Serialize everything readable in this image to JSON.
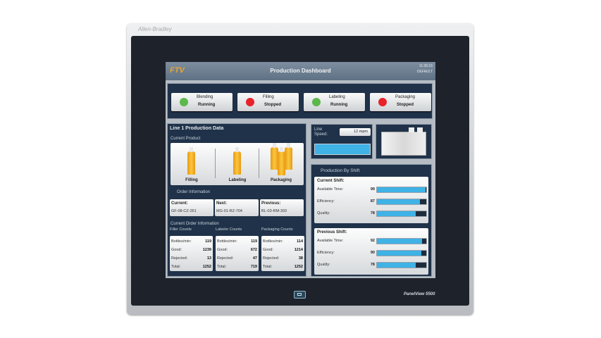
{
  "device": {
    "brand": "Allen-Bradley",
    "model": "PanelView 5500"
  },
  "header": {
    "title": "Production Dashboard",
    "time": "11:36:15",
    "user": "DEFAULT",
    "logo": "FTV"
  },
  "status": [
    {
      "name": "Blending",
      "state": "Running",
      "color": "#5cb84a"
    },
    {
      "name": "Filling",
      "state": "Stopped",
      "color": "#e8222a"
    },
    {
      "name": "Labeling",
      "state": "Running",
      "color": "#5cb84a"
    },
    {
      "name": "Packaging",
      "state": "Stopped",
      "color": "#e8222a"
    }
  ],
  "line": {
    "title": "Line 1 Production Data",
    "current_product": "Current Product",
    "stages": [
      "Filling",
      "Labeling",
      "Packaging"
    ],
    "order_title": "Order Information",
    "orders": [
      {
        "label": "Current:",
        "value": "GF-08-CZ-261"
      },
      {
        "label": "Next:",
        "value": "MG-01-RZ-704"
      },
      {
        "label": "Previous:",
        "value": "BL-03-RM-393"
      }
    ],
    "counts_title": "Current Order Information",
    "counts": [
      {
        "title": "Filler Counts",
        "rows": [
          [
            "Bottles/min:",
            "119"
          ],
          [
            "Good:",
            "1239"
          ],
          [
            "Rejected:",
            "13"
          ],
          [
            "Total:",
            "1252"
          ]
        ]
      },
      {
        "title": "Labeler Counts",
        "rows": [
          [
            "Bottles/min:",
            "119"
          ],
          [
            "Good:",
            "672"
          ],
          [
            "Rejected:",
            "47"
          ],
          [
            "Total:",
            "719"
          ]
        ]
      },
      {
        "title": "Packaging Counts",
        "rows": [
          [
            "Bottles/min:",
            "114"
          ],
          [
            "Good:",
            "1214"
          ],
          [
            "Rejected:",
            "38"
          ],
          [
            "Total:",
            "1252"
          ]
        ]
      }
    ]
  },
  "line_speed": {
    "label": "Line Speed:",
    "value": "12 mpm",
    "bar_percent": 100
  },
  "shift": {
    "title": "Production By Shift",
    "groups": [
      {
        "title": "Current Shift:",
        "metrics": [
          {
            "label": "Available Time:",
            "value": "99"
          },
          {
            "label": "Efficiency:",
            "value": "87"
          },
          {
            "label": "Quality:",
            "value": "78"
          }
        ]
      },
      {
        "title": "Previous Shift:",
        "metrics": [
          {
            "label": "Available Time:",
            "value": "92"
          },
          {
            "label": "Efficiency:",
            "value": "90"
          },
          {
            "label": "Quality:",
            "value": "78"
          }
        ]
      }
    ]
  }
}
